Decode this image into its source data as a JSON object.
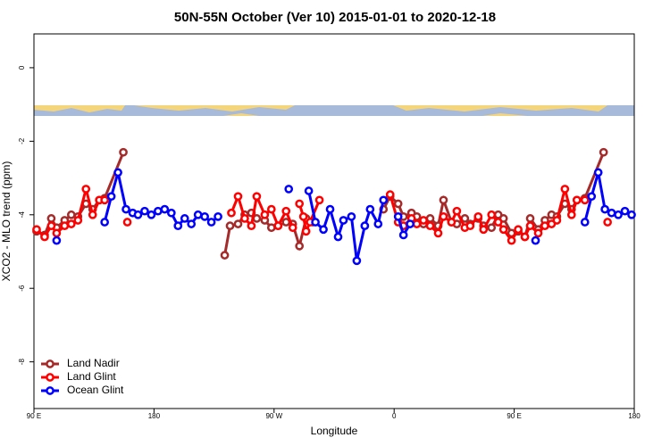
{
  "chart_data": {
    "type": "line",
    "title": "50N-55N October (Ver 10)   2015-01-01 to 2020-12-18",
    "x_label": "Longitude",
    "y_label": "XCO2 - MLO trend (ppm)",
    "xlim": [
      90,
      540
    ],
    "ylim": [
      -9.27,
      0.92
    ],
    "xticks": [
      {
        "value": 90,
        "label": "90 E"
      },
      180,
      {
        "value": 270,
        "label": "90 W"
      },
      {
        "value": 360,
        "label": "0"
      },
      {
        "value": 450,
        "label": "90 E"
      },
      {
        "value": 540,
        "label": "180"
      }
    ],
    "yticks": [
      -8,
      -6,
      -4,
      -2,
      0
    ],
    "legend": "bottom-left",
    "series": [
      {
        "name": "Land Nadir",
        "color": "#a52a2a",
        "x": [
          92,
          98,
          103,
          107,
          113,
          118,
          123,
          129,
          134,
          139,
          143,
          157,
          null,
          233,
          237,
          243,
          248,
          253,
          257,
          263,
          268,
          273,
          279,
          284,
          289,
          294,
          299,
          null,
          352,
          357,
          363,
          367,
          373,
          377,
          382,
          387,
          393,
          397,
          403,
          407,
          413,
          417,
          423,
          427,
          433,
          438,
          442,
          448,
          453,
          458,
          462,
          468,
          473,
          478,
          482,
          488,
          493,
          497,
          503,
          517
        ],
        "values": [
          -4.45,
          -4.55,
          -4.1,
          -4.35,
          -4.15,
          -4.0,
          -4.05,
          -3.7,
          -3.85,
          -3.6,
          -3.55,
          -2.3,
          null,
          -5.1,
          -4.3,
          -4.25,
          -4.0,
          -3.95,
          -4.1,
          -4.15,
          -4.35,
          -4.3,
          -4.2,
          -4.25,
          -4.85,
          -4.1,
          -4.2,
          null,
          -3.85,
          -3.5,
          -3.7,
          -4.05,
          -3.95,
          -4.05,
          -4.25,
          -4.1,
          -4.3,
          -3.6,
          -4.2,
          -4.25,
          -4.1,
          -4.25,
          -4.1,
          -4.3,
          -4.35,
          -4.0,
          -4.1,
          -4.5,
          -4.45,
          -4.6,
          -4.1,
          -4.4,
          -4.15,
          -4.0,
          -4.05,
          -3.7,
          -3.85,
          -3.6,
          -3.55,
          -2.3
        ]
      },
      {
        "name": "Land Glint",
        "color": "#ff0000",
        "x": [
          92,
          98,
          103,
          107,
          113,
          118,
          123,
          129,
          134,
          139,
          143,
          null,
          160,
          null,
          238,
          243,
          248,
          253,
          257,
          263,
          268,
          273,
          279,
          284,
          null,
          289,
          292,
          294,
          297,
          304,
          null,
          357,
          363,
          367,
          373,
          377,
          382,
          387,
          393,
          397,
          403,
          407,
          413,
          417,
          423,
          427,
          433,
          438,
          442,
          448,
          453,
          458,
          462,
          468,
          473,
          478,
          482,
          488,
          493,
          497,
          503,
          null,
          520
        ],
        "values": [
          -4.4,
          -4.6,
          -4.3,
          -4.5,
          -4.3,
          -4.25,
          -4.15,
          -3.3,
          -4.0,
          -3.6,
          -3.6,
          null,
          -4.2,
          null,
          -3.95,
          -3.5,
          -4.1,
          -4.3,
          -3.5,
          -4.0,
          -3.85,
          -4.3,
          -3.9,
          -4.35,
          null,
          -3.7,
          -4.05,
          -4.45,
          -4.2,
          -3.6,
          null,
          -3.45,
          -4.2,
          -4.3,
          -4.1,
          -4.25,
          -4.15,
          -4.3,
          -4.5,
          -4.05,
          -4.2,
          -3.9,
          -4.35,
          -4.3,
          -4.05,
          -4.4,
          -4.0,
          -4.2,
          -4.4,
          -4.7,
          -4.4,
          -4.6,
          -4.3,
          -4.5,
          -4.3,
          -4.25,
          -4.15,
          -3.3,
          -4.0,
          -3.6,
          -3.6,
          null,
          -4.2
        ]
      },
      {
        "name": "Ocean Glint",
        "color": "#0000ff",
        "x": [
          107,
          null,
          143,
          148,
          153,
          159,
          164,
          168,
          173,
          178,
          183,
          188,
          193,
          198,
          203,
          208,
          213,
          218,
          223,
          228,
          null,
          281,
          null,
          296,
          301,
          307,
          312,
          318,
          322,
          328,
          332,
          338,
          342,
          348,
          352,
          null,
          363,
          367,
          372,
          null,
          466,
          null,
          503,
          508,
          513,
          518,
          523,
          528,
          533,
          538
        ],
        "values": [
          -4.7,
          null,
          -4.2,
          -3.5,
          -2.85,
          -3.85,
          -3.95,
          -4.0,
          -3.9,
          -4.0,
          -3.9,
          -3.85,
          -3.95,
          -4.3,
          -4.1,
          -4.25,
          -4.0,
          -4.05,
          -4.2,
          -4.05,
          null,
          -3.3,
          null,
          -3.35,
          -4.2,
          -4.4,
          -3.85,
          -4.6,
          -4.15,
          -4.05,
          -5.25,
          -4.3,
          -3.85,
          -4.25,
          -3.6,
          null,
          -4.05,
          -4.55,
          -4.25,
          null,
          -4.7,
          null,
          -4.2,
          -3.5,
          -2.85,
          -3.85,
          -3.95,
          -4.0,
          -3.9,
          -4.0
        ]
      }
    ]
  }
}
